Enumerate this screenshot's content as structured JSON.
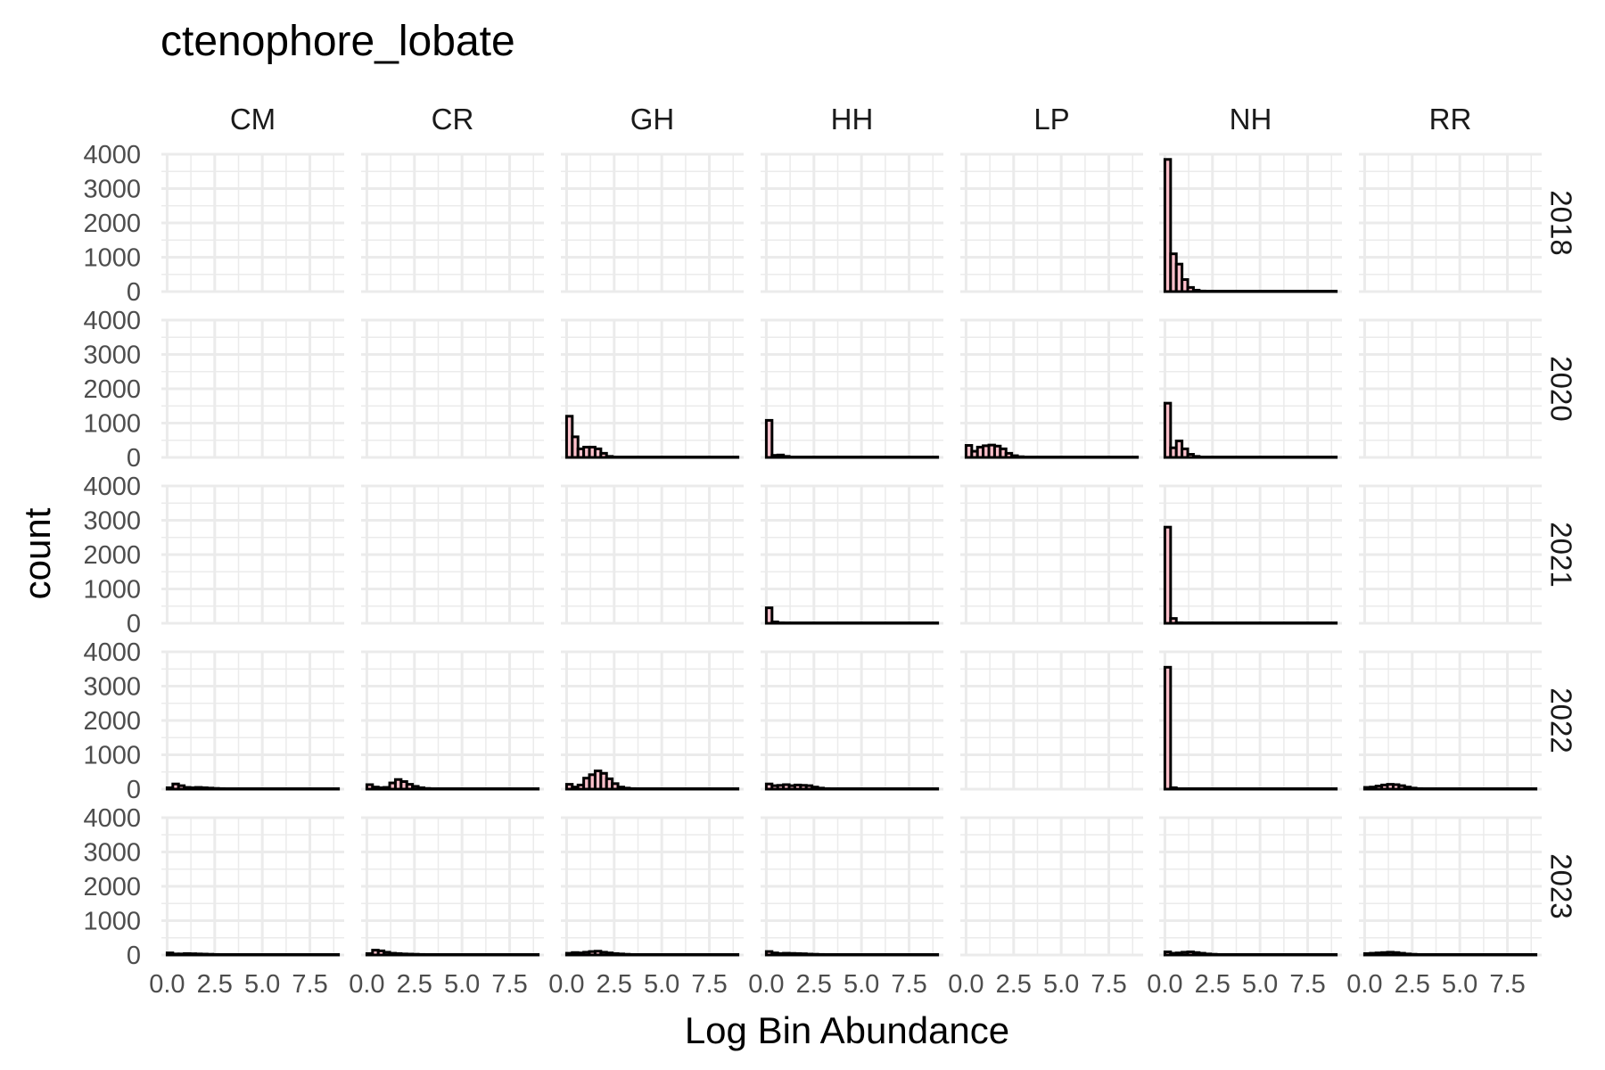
{
  "chart_data": {
    "type": "histogram-facet-grid",
    "title": "ctenophore_lobate",
    "xlabel": "Log Bin Abundance",
    "ylabel": "count",
    "columns": [
      "CM",
      "CR",
      "GH",
      "HH",
      "LP",
      "NH",
      "RR"
    ],
    "rows": [
      "2018",
      "2020",
      "2021",
      "2022",
      "2023"
    ],
    "x_tick_labels": [
      "0.0",
      "2.5",
      "5.0",
      "7.5"
    ],
    "x_ticks": [
      0,
      2.5,
      5,
      7.5
    ],
    "xlim": [
      -0.3,
      9.3
    ],
    "y_ticks": [
      0,
      1000,
      2000,
      3000,
      4000
    ],
    "y_tick_labels": [
      "0",
      "1000",
      "2000",
      "3000",
      "4000"
    ],
    "ylim": [
      0,
      4000
    ],
    "bin_width": 0.3,
    "x_max": 9.0,
    "bar_fill": "#ffc0cb",
    "bar_outline": "#000000",
    "panels": [
      {
        "row": "2018",
        "col": "NH",
        "counts": [
          3850,
          1100,
          800,
          350,
          120,
          40,
          15,
          8,
          5,
          3
        ]
      },
      {
        "row": "2020",
        "col": "GH",
        "counts": [
          1200,
          600,
          250,
          300,
          300,
          250,
          120,
          30,
          10,
          5,
          3
        ]
      },
      {
        "row": "2020",
        "col": "HH",
        "counts": [
          1080,
          60,
          70,
          30,
          10,
          5
        ]
      },
      {
        "row": "2020",
        "col": "LP",
        "counts": [
          350,
          180,
          300,
          340,
          360,
          330,
          250,
          120,
          50,
          20,
          10,
          5
        ]
      },
      {
        "row": "2020",
        "col": "NH",
        "counts": [
          1580,
          280,
          480,
          250,
          90,
          30,
          10,
          5
        ]
      },
      {
        "row": "2021",
        "col": "HH",
        "counts": [
          450,
          40,
          15,
          5
        ]
      },
      {
        "row": "2021",
        "col": "NH",
        "counts": [
          2800,
          140,
          15,
          5
        ]
      },
      {
        "row": "2022",
        "col": "CM",
        "counts": [
          40,
          150,
          100,
          50,
          40,
          50,
          40,
          30,
          20,
          15,
          10,
          8,
          5,
          5,
          3
        ]
      },
      {
        "row": "2022",
        "col": "CR",
        "counts": [
          130,
          60,
          40,
          50,
          180,
          280,
          220,
          140,
          80,
          40,
          20,
          10,
          5
        ]
      },
      {
        "row": "2022",
        "col": "GH",
        "counts": [
          140,
          60,
          120,
          320,
          420,
          530,
          460,
          300,
          160,
          60,
          30,
          15,
          8,
          5
        ]
      },
      {
        "row": "2022",
        "col": "HH",
        "counts": [
          150,
          100,
          110,
          130,
          100,
          120,
          110,
          100,
          60,
          30,
          15,
          8,
          5
        ]
      },
      {
        "row": "2022",
        "col": "NH",
        "counts": [
          3550,
          40,
          10,
          5
        ]
      },
      {
        "row": "2022",
        "col": "RR",
        "counts": [
          50,
          60,
          90,
          120,
          140,
          130,
          100,
          60,
          30,
          15,
          8,
          5
        ]
      },
      {
        "row": "2023",
        "col": "CM",
        "counts": [
          60,
          30,
          30,
          40,
          35,
          30,
          25,
          20,
          15,
          10,
          8,
          5,
          3
        ]
      },
      {
        "row": "2023",
        "col": "CR",
        "counts": [
          40,
          140,
          120,
          80,
          50,
          40,
          30,
          25,
          20,
          15,
          10,
          5
        ]
      },
      {
        "row": "2023",
        "col": "GH",
        "counts": [
          50,
          70,
          60,
          80,
          100,
          110,
          80,
          60,
          40,
          30,
          20,
          10,
          5
        ]
      },
      {
        "row": "2023",
        "col": "HH",
        "counts": [
          100,
          60,
          40,
          50,
          45,
          40,
          35,
          25,
          20,
          15,
          10,
          5
        ]
      },
      {
        "row": "2023",
        "col": "NH",
        "counts": [
          90,
          50,
          60,
          80,
          90,
          70,
          50,
          30,
          20,
          10,
          5
        ]
      },
      {
        "row": "2023",
        "col": "RR",
        "counts": [
          40,
          50,
          60,
          70,
          80,
          70,
          50,
          30,
          20,
          10,
          5
        ]
      }
    ]
  }
}
